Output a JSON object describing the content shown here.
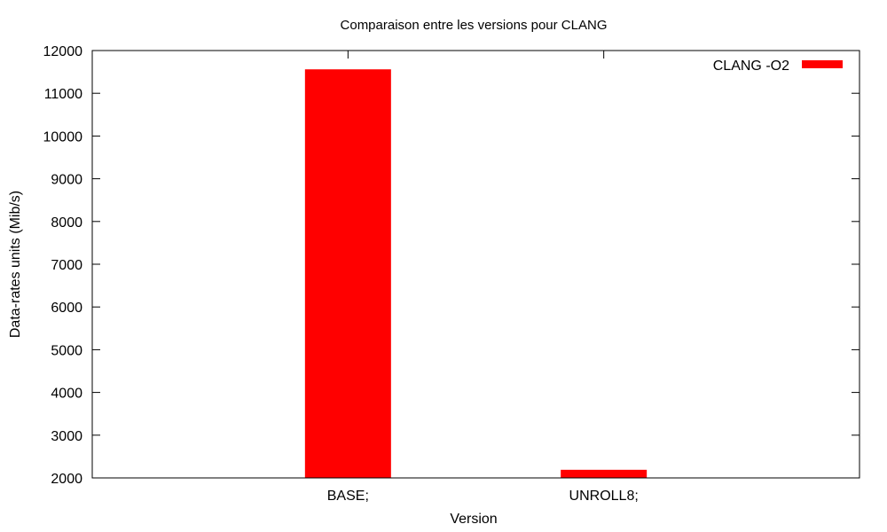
{
  "chart_data": {
    "type": "bar",
    "title": "Comparaison entre les versions pour CLANG",
    "xlabel": "Version",
    "ylabel": "Data-rates units (Mib/s)",
    "categories": [
      "BASE;",
      "UNROLL8;"
    ],
    "series": [
      {
        "name": "CLANG -O2",
        "values": [
          11560,
          2190
        ],
        "color": "#ff0000"
      }
    ],
    "ylim": [
      2000,
      12000
    ],
    "yticks": [
      2000,
      3000,
      4000,
      5000,
      6000,
      7000,
      8000,
      9000,
      10000,
      11000,
      12000
    ],
    "grid": false,
    "legend_position": "top-right"
  }
}
